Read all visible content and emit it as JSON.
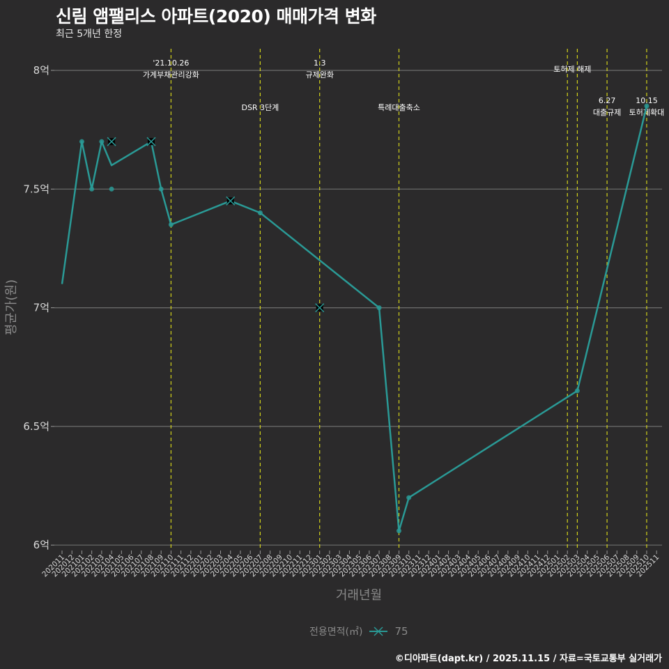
{
  "header": {
    "title": "신림 앰팰리스 아파트(2020) 매매가격 변화",
    "subtitle": "최근 5개년 한정"
  },
  "legend": {
    "title": "전용면적(㎡)",
    "items": [
      {
        "label": "75",
        "color": "#2a9a96"
      }
    ]
  },
  "caption": "©디아파트(dapt.kr) / 2025.11.15 / 자료=국토교통부 실거래가",
  "colors": {
    "background": "#2b2a2b",
    "series": "#2a9a96",
    "grid": "#6e6e6e",
    "event_line": "#d4d41a"
  },
  "chart_data": {
    "type": "line",
    "title": "신림 앰팰리스 아파트(2020) 매매가격 변화",
    "subtitle": "최근 5개년 한정",
    "xlabel": "거래년월",
    "ylabel": "평균가(원)",
    "ylim": [
      6.0,
      8.0
    ],
    "y_ticks": [
      {
        "value": 6.0,
        "label": "6억"
      },
      {
        "value": 6.5,
        "label": "6.5억"
      },
      {
        "value": 7.0,
        "label": "7억"
      },
      {
        "value": 7.5,
        "label": "7.5억"
      },
      {
        "value": 8.0,
        "label": "8억"
      }
    ],
    "grid": true,
    "legend_position": "bottom",
    "categories": [
      "202011",
      "202012",
      "202101",
      "202102",
      "202103",
      "202104",
      "202105",
      "202106",
      "202107",
      "202108",
      "202109",
      "202110",
      "202111",
      "202112",
      "202201",
      "202202",
      "202203",
      "202204",
      "202205",
      "202206",
      "202207",
      "202208",
      "202209",
      "202210",
      "202211",
      "202212",
      "202301",
      "202302",
      "202303",
      "202304",
      "202305",
      "202306",
      "202307",
      "202308",
      "202309",
      "202310",
      "202311",
      "202312",
      "202401",
      "202402",
      "202403",
      "202404",
      "202405",
      "202406",
      "202407",
      "202408",
      "202409",
      "202410",
      "202411",
      "202412",
      "202501",
      "202502",
      "202503",
      "202504",
      "202505",
      "202506",
      "202507",
      "202508",
      "202509",
      "202510",
      "202511"
    ],
    "series": [
      {
        "name": "75",
        "unit": "억",
        "line": [
          {
            "x": "202011",
            "y": 7.1
          },
          {
            "x": "202101",
            "y": 7.7
          },
          {
            "x": "202102",
            "y": 7.5
          },
          {
            "x": "202103",
            "y": 7.7
          },
          {
            "x": "202104",
            "y": 7.6
          },
          {
            "x": "202108",
            "y": 7.7
          },
          {
            "x": "202109",
            "y": 7.5
          },
          {
            "x": "202110",
            "y": 7.35
          },
          {
            "x": "202204",
            "y": 7.45
          },
          {
            "x": "202207",
            "y": 7.4
          },
          {
            "x": "202307",
            "y": 7.0
          },
          {
            "x": "202309",
            "y": 6.06
          },
          {
            "x": "202310",
            "y": 6.2
          },
          {
            "x": "202503",
            "y": 6.65
          },
          {
            "x": "202510",
            "y": 7.85
          }
        ],
        "dots": [
          {
            "x": "202101",
            "y": 7.7
          },
          {
            "x": "202102",
            "y": 7.5
          },
          {
            "x": "202103",
            "y": 7.7
          },
          {
            "x": "202104",
            "y": 7.5
          },
          {
            "x": "202109",
            "y": 7.5
          },
          {
            "x": "202110",
            "y": 7.35
          },
          {
            "x": "202207",
            "y": 7.4
          },
          {
            "x": "202307",
            "y": 7.0
          },
          {
            "x": "202309",
            "y": 6.06
          },
          {
            "x": "202310",
            "y": 6.2
          },
          {
            "x": "202503",
            "y": 6.65
          },
          {
            "x": "202510",
            "y": 7.85
          }
        ],
        "cross_markers": [
          {
            "x": "202104",
            "y": 7.7
          },
          {
            "x": "202108",
            "y": 7.7
          },
          {
            "x": "202204",
            "y": 7.45
          },
          {
            "x": "202301",
            "y": 7.0
          }
        ]
      }
    ],
    "events": [
      {
        "x": "202110",
        "lines": [
          "'21.10.26",
          "가계부채관리강화"
        ],
        "row": 0
      },
      {
        "x": "202207",
        "lines": [
          "DSR 3단계"
        ],
        "row": 1
      },
      {
        "x": "202301",
        "lines": [
          "1.3",
          "규제완화"
        ],
        "row": 0
      },
      {
        "x": "202309",
        "lines": [
          "특례대출축소"
        ],
        "row": 1
      },
      {
        "x": "202502",
        "lines": [],
        "row": 0
      },
      {
        "x": "202503",
        "lines": [
          "토허제 해제"
        ],
        "row": 0,
        "label_x": "202502.5"
      },
      {
        "x": "202506",
        "lines": [
          "6.27",
          "대출규제"
        ],
        "row": 2
      },
      {
        "x": "202510",
        "lines": [
          "10.15",
          "토허제확대"
        ],
        "row": 2
      }
    ]
  }
}
